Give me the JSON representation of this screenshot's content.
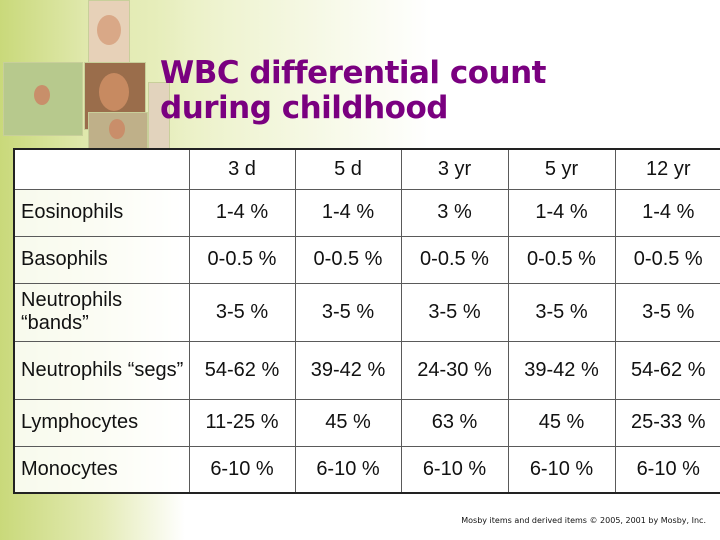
{
  "title": {
    "line1": "WBC differential count",
    "line2": "during childhood"
  },
  "table": {
    "corner_label": "",
    "columns": [
      "3 d",
      "5 d",
      "3 yr",
      "5 yr",
      "12 yr"
    ],
    "rows": [
      {
        "label": "Eosinophils",
        "values": [
          "1-4 %",
          "1-4 %",
          "3 %",
          "1-4 %",
          "1-4 %"
        ]
      },
      {
        "label": "Basophils",
        "values": [
          "0-0.5 %",
          "0-0.5 %",
          "0-0.5 %",
          "0-0.5 %",
          "0-0.5 %"
        ]
      },
      {
        "label": "Neutrophils “bands”",
        "values": [
          "3-5 %",
          "3-5 %",
          "3-5 %",
          "3-5 %",
          "3-5 %"
        ]
      },
      {
        "label": "Neutrophils “segs”",
        "values": [
          "54-62 %",
          "39-42 %",
          "24-30 %",
          "39-42 %",
          "54-62 %"
        ]
      },
      {
        "label": "Lymphocytes",
        "values": [
          "11-25 %",
          "45 %",
          "63 %",
          "45 %",
          "25-33 %"
        ]
      },
      {
        "label": "Monocytes",
        "values": [
          "6-10 %",
          "6-10 %",
          "6-10 %",
          "6-10 %",
          "6-10 %"
        ]
      }
    ]
  },
  "credit": "Mosby items and derived items © 2005, 2001 by Mosby, Inc.",
  "colors": {
    "title": "#7a0080",
    "side_green": "#c9d97a"
  }
}
